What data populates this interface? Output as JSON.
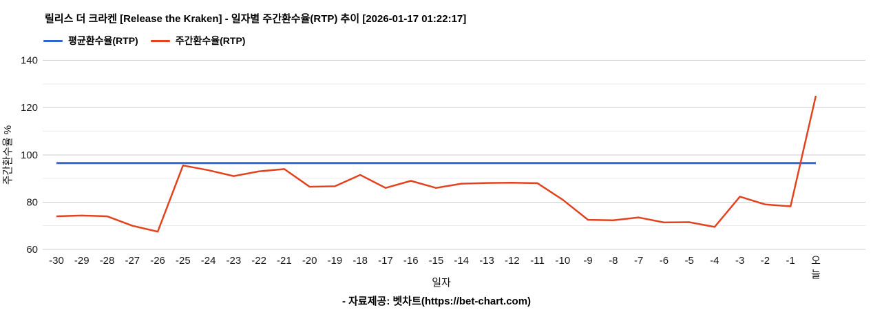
{
  "footer": {
    "text": "- 자료제공: 벳차트(https://bet-chart.com)"
  },
  "chart_data": {
    "type": "line",
    "title": "릴리스 더 크라켄 [Release the Kraken] - 일자별 주간환수율(RTP) 추이 [2026-01-17 01:22:17]",
    "xlabel": "일자",
    "ylabel": "주간환수율 %",
    "ylim": [
      60,
      140
    ],
    "yticks_major": [
      60,
      80,
      100,
      120,
      140
    ],
    "yticks_minor": [
      70,
      90,
      110,
      130
    ],
    "grid": true,
    "legend_position": "top-left",
    "background": "#ffffff",
    "gridline_major_color": "#cccccc",
    "gridline_minor_color": "#ececec",
    "tick_label_color": "#1a1a1a",
    "categories": [
      "-30",
      "-29",
      "-28",
      "-27",
      "-26",
      "-25",
      "-24",
      "-23",
      "-22",
      "-21",
      "-20",
      "-19",
      "-18",
      "-17",
      "-16",
      "-15",
      "-14",
      "-13",
      "-12",
      "-11",
      "-10",
      "-9",
      "-8",
      "-7",
      "-6",
      "-5",
      "-4",
      "-3",
      "-2",
      "-1",
      "오늘"
    ],
    "series": [
      {
        "name": "평균환수율(RTP)",
        "color": "#3366cc",
        "stroke_width": 3,
        "constant_value": 96.5
      },
      {
        "name": "주간환수율(RTP)",
        "color": "#e2431e",
        "stroke_width": 2.5,
        "values": [
          74,
          74.3,
          74,
          70,
          67.5,
          95.5,
          93.5,
          91,
          93,
          94,
          86.5,
          86.7,
          91.5,
          86,
          89,
          86,
          87.8,
          88.1,
          88.2,
          88,
          81,
          72.5,
          72.3,
          73.5,
          71.4,
          71.5,
          69.5,
          82.3,
          79,
          78.2,
          125
        ]
      }
    ]
  }
}
